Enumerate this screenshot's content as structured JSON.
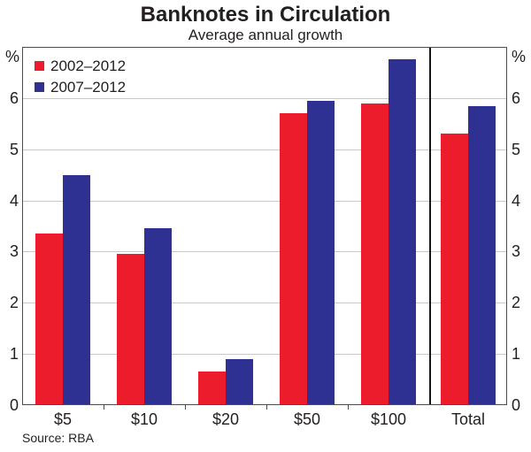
{
  "title": "Banknotes in Circulation",
  "subtitle": "Average annual growth",
  "source": "Source: RBA",
  "axis": {
    "unit_label_left": "%",
    "unit_label_right": "%",
    "yticks": [
      0,
      1,
      2,
      3,
      4,
      5,
      6
    ],
    "ylim": [
      0,
      7
    ]
  },
  "legend": {
    "items": [
      {
        "label": "2002–2012",
        "color": "#ec1c2c"
      },
      {
        "label": "2007–2012",
        "color": "#2e3192"
      }
    ]
  },
  "chart_data": {
    "type": "bar",
    "title": "Banknotes in Circulation",
    "subtitle": "Average annual growth",
    "categories": [
      "$5",
      "$10",
      "$20",
      "$50",
      "$100",
      "Total"
    ],
    "series": [
      {
        "name": "2002–2012",
        "color": "#ec1c2c",
        "values": [
          3.35,
          2.95,
          0.65,
          5.7,
          5.9,
          5.3
        ]
      },
      {
        "name": "2007–2012",
        "color": "#2e3192",
        "values": [
          4.5,
          3.45,
          0.9,
          5.95,
          6.75,
          5.85
        ]
      }
    ],
    "ylabel": "%",
    "ylim": [
      0,
      7
    ],
    "yticks": [
      0,
      1,
      2,
      3,
      4,
      5,
      6
    ],
    "grid": true,
    "legend_position": "top-left",
    "separator_before_category": "Total",
    "source": "Source: RBA"
  }
}
